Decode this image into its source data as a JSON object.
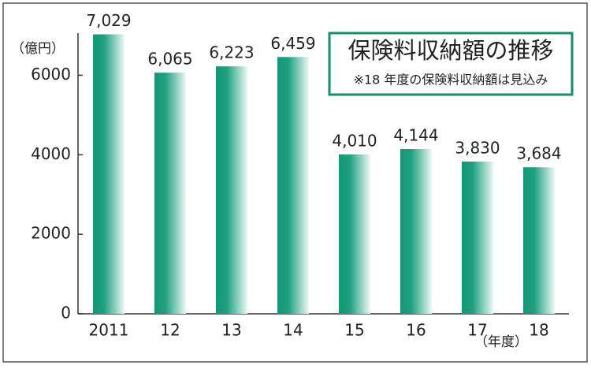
{
  "chart_data": {
    "type": "bar",
    "title": "保険料収納額の推移",
    "subtitle": "※18 年度の保険料収納額は見込み",
    "y_unit": "（億円）",
    "x_unit": "（年度）",
    "categories": [
      "2011",
      "12",
      "13",
      "14",
      "15",
      "16",
      "17",
      "18"
    ],
    "values": [
      7029,
      6065,
      6223,
      6459,
      4010,
      4144,
      3830,
      3684
    ],
    "value_labels": [
      "7,029",
      "6,065",
      "6,223",
      "6,459",
      "4,010",
      "4,144",
      "3,830",
      "3,684"
    ],
    "color": "#14967a",
    "ylim": [
      0,
      7000
    ],
    "yticks": [
      0,
      2000,
      4000,
      6000
    ]
  }
}
